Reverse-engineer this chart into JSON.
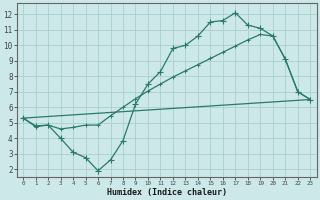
{
  "xlabel": "Humidex (Indice chaleur)",
  "bg_color": "#cce8e8",
  "grid_color": "#aacfcf",
  "line_color": "#2a7a6a",
  "xlim": [
    -0.5,
    23.5
  ],
  "ylim": [
    1.5,
    12.7
  ],
  "xticks": [
    0,
    1,
    2,
    3,
    4,
    5,
    6,
    7,
    8,
    9,
    10,
    11,
    12,
    13,
    14,
    15,
    16,
    17,
    18,
    19,
    20,
    21,
    22,
    23
  ],
  "yticks": [
    2,
    3,
    4,
    5,
    6,
    7,
    8,
    9,
    10,
    11,
    12
  ],
  "line1_x": [
    0,
    1,
    2,
    3,
    4,
    5,
    6,
    7,
    8,
    9,
    10,
    11,
    12,
    13,
    14,
    15,
    16,
    17,
    18,
    19,
    20,
    21,
    22,
    23
  ],
  "line1_y": [
    5.3,
    4.8,
    4.85,
    4.0,
    3.1,
    2.75,
    1.9,
    2.6,
    3.85,
    6.2,
    7.5,
    8.3,
    9.8,
    10.0,
    10.6,
    11.5,
    11.6,
    12.1,
    11.3,
    11.1,
    10.6,
    9.1,
    7.0,
    6.5
  ],
  "line2_x": [
    0,
    23
  ],
  "line2_y": [
    5.3,
    6.5
  ],
  "line3_x": [
    0,
    1,
    2,
    3,
    4,
    5,
    6,
    7,
    8,
    9,
    10,
    11,
    12,
    13,
    14,
    15,
    16,
    17,
    18,
    19,
    20,
    21,
    22,
    23
  ],
  "line3_y": [
    5.3,
    4.75,
    4.85,
    4.6,
    4.7,
    4.85,
    4.85,
    5.45,
    6.0,
    6.55,
    7.05,
    7.5,
    7.95,
    8.35,
    8.75,
    9.15,
    9.55,
    9.95,
    10.35,
    10.7,
    10.6,
    9.1,
    7.0,
    6.5
  ]
}
